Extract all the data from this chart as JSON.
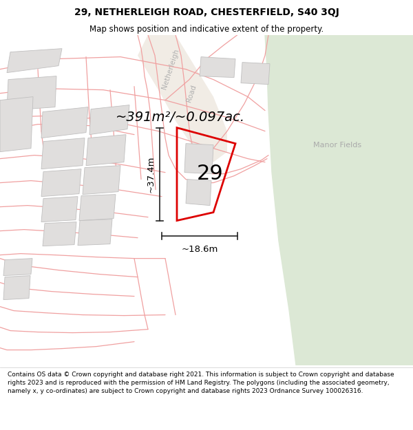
{
  "title": "29, NETHERLEIGH ROAD, CHESTERFIELD, S40 3QJ",
  "subtitle": "Map shows position and indicative extent of the property.",
  "area_text": "~391m²/~0.097ac.",
  "number_label": "29",
  "dim_vertical": "~37.4m",
  "dim_horizontal": "~18.6m",
  "footer_text": "Contains OS data © Crown copyright and database right 2021. This information is subject to Crown copyright and database rights 2023 and is reproduced with the permission of HM Land Registry. The polygons (including the associated geometry, namely x, y co-ordinates) are subject to Crown copyright and database rights 2023 Ordnance Survey 100026316.",
  "map_bg": "#f7f6f2",
  "green_color": "#dce8d5",
  "road_fill": "#e8e0d5",
  "building_face": "#e0dedd",
  "building_edge": "#c0bfbf",
  "parcel_line": "#f0a0a0",
  "plot_color": "#dd0000",
  "dim_color": "#222222",
  "label_gray": "#aaaaaa",
  "road_label_gray": "#b0b0b0",
  "manor_text": "Manor Fields",
  "title_fs": 10,
  "subtitle_fs": 8.5,
  "area_fs": 14,
  "number_fs": 22,
  "dim_fs": 9.5,
  "footer_fs": 6.5
}
